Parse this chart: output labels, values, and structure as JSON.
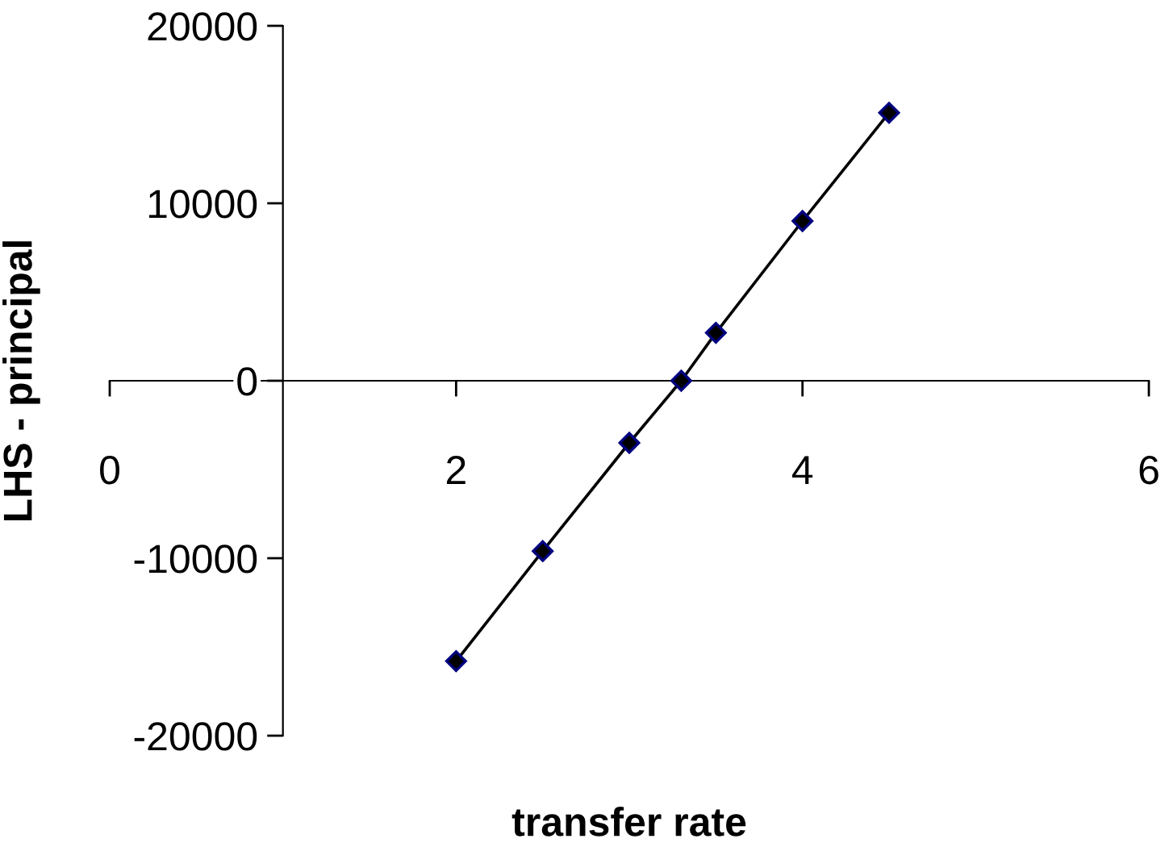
{
  "chart_data": {
    "type": "line",
    "xlabel": "transfer rate",
    "ylabel": "LHS - principal",
    "series": [
      {
        "color": "#000080",
        "x": [
          2,
          2.5,
          3,
          3.3,
          3.5,
          4,
          4.5
        ],
        "values": [
          -15800,
          -9600,
          -3500,
          0,
          2700,
          9000,
          15100
        ]
      }
    ],
    "xlim": [
      0,
      6
    ],
    "xticks": [
      0,
      2,
      4,
      6
    ],
    "ylim": [
      -20000,
      20000
    ],
    "yticks": [
      -20000,
      -10000,
      0,
      10000,
      20000
    ],
    "marker": "diamond",
    "line_style": "solid",
    "grid": false,
    "legend": false
  }
}
